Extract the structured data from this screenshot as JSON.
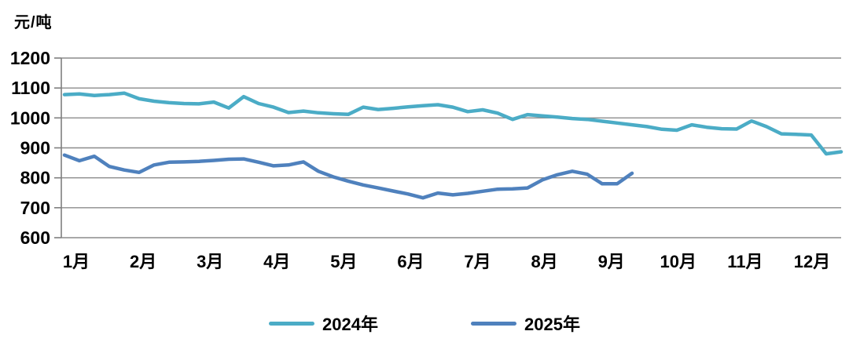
{
  "chart_data": {
    "type": "line",
    "title": "",
    "ylabel": "元/吨",
    "xlabel": "",
    "x_unit": "week",
    "x_points": 53,
    "x_tick_labels": [
      "1月",
      "2月",
      "3月",
      "4月",
      "5月",
      "6月",
      "7月",
      "8月",
      "9月",
      "10月",
      "11月",
      "12月"
    ],
    "y_ticks": [
      1200,
      1100,
      1000,
      900,
      800,
      700,
      600
    ],
    "ylim": [
      600,
      1200
    ],
    "grid": "horizontal-only",
    "legend_position": "bottom-center",
    "series": [
      {
        "name": "2024年",
        "color": "#4BACC6",
        "values": [
          1078,
          1080,
          1075,
          1078,
          1083,
          1064,
          1056,
          1051,
          1048,
          1047,
          1053,
          1033,
          1071,
          1048,
          1036,
          1018,
          1023,
          1017,
          1014,
          1012,
          1036,
          1028,
          1032,
          1037,
          1041,
          1044,
          1036,
          1021,
          1027,
          1016,
          995,
          1011,
          1007,
          1003,
          998,
          995,
          989,
          983,
          977,
          971,
          962,
          959,
          977,
          969,
          964,
          963,
          990,
          971,
          947,
          945,
          943,
          880,
          887
        ]
      },
      {
        "name": "2025年",
        "color": "#4F81BD",
        "values": [
          876,
          857,
          872,
          838,
          826,
          818,
          843,
          852,
          853,
          855,
          858,
          862,
          863,
          852,
          840,
          843,
          853,
          822,
          803,
          789,
          776,
          766,
          756,
          746,
          733,
          749,
          743,
          748,
          755,
          762,
          763,
          766,
          793,
          810,
          822,
          812,
          780,
          780,
          815
        ]
      }
    ]
  },
  "colors": {
    "grid": "#8C8C8C",
    "axis": "#7F7F7F",
    "label": "#000000",
    "background": "#FFFFFF"
  }
}
